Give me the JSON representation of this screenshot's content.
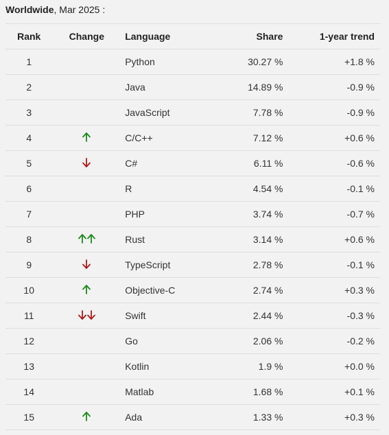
{
  "caption": {
    "region": "Worldwide",
    "date": ", Mar 2025 :"
  },
  "columns": {
    "rank": "Rank",
    "change": "Change",
    "language": "Language",
    "share": "Share",
    "trend": "1-year trend"
  },
  "colors": {
    "up": "#1a8a1a",
    "down": "#b01818"
  },
  "rows": [
    {
      "rank": "1",
      "change": "",
      "language": "Python",
      "share": "30.27 %",
      "trend": "+1.8 %"
    },
    {
      "rank": "2",
      "change": "",
      "language": "Java",
      "share": "14.89 %",
      "trend": "-0.9 %"
    },
    {
      "rank": "3",
      "change": "",
      "language": "JavaScript",
      "share": "7.78 %",
      "trend": "-0.9 %"
    },
    {
      "rank": "4",
      "change": "up",
      "language": "C/C++",
      "share": "7.12 %",
      "trend": "+0.6 %"
    },
    {
      "rank": "5",
      "change": "down",
      "language": "C#",
      "share": "6.11 %",
      "trend": "-0.6 %"
    },
    {
      "rank": "6",
      "change": "",
      "language": "R",
      "share": "4.54 %",
      "trend": "-0.1 %"
    },
    {
      "rank": "7",
      "change": "",
      "language": "PHP",
      "share": "3.74 %",
      "trend": "-0.7 %"
    },
    {
      "rank": "8",
      "change": "up2",
      "language": "Rust",
      "share": "3.14 %",
      "trend": "+0.6 %"
    },
    {
      "rank": "9",
      "change": "down",
      "language": "TypeScript",
      "share": "2.78 %",
      "trend": "-0.1 %"
    },
    {
      "rank": "10",
      "change": "up",
      "language": "Objective-C",
      "share": "2.74 %",
      "trend": "+0.3 %"
    },
    {
      "rank": "11",
      "change": "down2",
      "language": "Swift",
      "share": "2.44 %",
      "trend": "-0.3 %"
    },
    {
      "rank": "12",
      "change": "",
      "language": "Go",
      "share": "2.06 %",
      "trend": "-0.2 %"
    },
    {
      "rank": "13",
      "change": "",
      "language": "Kotlin",
      "share": "1.9 %",
      "trend": "+0.0 %"
    },
    {
      "rank": "14",
      "change": "",
      "language": "Matlab",
      "share": "1.68 %",
      "trend": "+0.1 %"
    },
    {
      "rank": "15",
      "change": "up",
      "language": "Ada",
      "share": "1.33 %",
      "trend": "+0.3 %"
    }
  ]
}
